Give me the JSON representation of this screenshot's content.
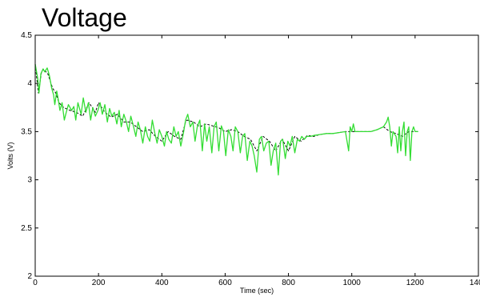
{
  "chart_data": {
    "type": "line",
    "title": "Voltage",
    "xlabel": "Time (sec)",
    "ylabel": "Volts (V)",
    "xlim": [
      0,
      1400
    ],
    "ylim": [
      2,
      4.5
    ],
    "x_ticks": [
      0,
      200,
      400,
      600,
      800,
      1000,
      1200,
      1400
    ],
    "y_ticks": [
      2,
      2.5,
      3,
      3.5,
      4,
      4.5
    ],
    "x_tick_labels": [
      "0",
      "200",
      "400",
      "600",
      "800",
      "1000",
      "1200",
      "1400"
    ],
    "y_tick_labels": [
      "2",
      "2.5",
      "3",
      "3.5",
      "4",
      "4.5"
    ],
    "grid": false,
    "series": [
      {
        "color": "#000000",
        "style": "dashed",
        "x": [
          0,
          10,
          20,
          25,
          40,
          55,
          65,
          75,
          90,
          110,
          130,
          150,
          170,
          190,
          200,
          220,
          240,
          260,
          280,
          300,
          320,
          340,
          360,
          380,
          400,
          420,
          440,
          460,
          475,
          480,
          500,
          520,
          540,
          560,
          580,
          600,
          620,
          640,
          660,
          680,
          700,
          720,
          740,
          760,
          780,
          800,
          820,
          840,
          860,
          880,
          900,
          920,
          940,
          960,
          980,
          1000,
          1020,
          1040,
          1060,
          1080,
          1100,
          1120,
          1140,
          1160,
          1180,
          1200,
          1210
        ],
        "values": [
          4.2,
          3.9,
          4.12,
          4.15,
          4.1,
          3.95,
          3.9,
          3.8,
          3.75,
          3.72,
          3.7,
          3.66,
          3.8,
          3.7,
          3.8,
          3.7,
          3.65,
          3.68,
          3.6,
          3.6,
          3.55,
          3.5,
          3.52,
          3.45,
          3.4,
          3.5,
          3.45,
          3.42,
          3.6,
          3.62,
          3.6,
          3.55,
          3.58,
          3.56,
          3.54,
          3.5,
          3.52,
          3.5,
          3.45,
          3.42,
          3.3,
          3.45,
          3.4,
          3.3,
          3.42,
          3.3,
          3.45,
          3.4,
          3.46,
          3.45,
          3.47,
          3.48,
          3.48,
          3.49,
          3.5,
          3.5,
          3.5,
          3.5,
          3.5,
          3.52,
          3.55,
          3.5,
          3.48,
          3.45,
          3.5,
          3.5,
          3.5
        ]
      },
      {
        "color": "#33dd33",
        "style": "solid",
        "x": [
          0,
          8,
          12,
          18,
          25,
          30,
          38,
          45,
          52,
          58,
          62,
          68,
          72,
          78,
          85,
          92,
          98,
          105,
          115,
          122,
          128,
          135,
          145,
          152,
          160,
          168,
          175,
          182,
          190,
          198,
          205,
          212,
          220,
          228,
          235,
          242,
          250,
          258,
          265,
          272,
          280,
          288,
          295,
          302,
          310,
          318,
          325,
          332,
          340,
          348,
          355,
          362,
          370,
          378,
          385,
          392,
          400,
          408,
          415,
          422,
          430,
          438,
          445,
          452,
          460,
          468,
          475,
          482,
          490,
          498,
          505,
          512,
          520,
          528,
          535,
          542,
          550,
          558,
          565,
          572,
          580,
          588,
          595,
          602,
          610,
          618,
          625,
          632,
          640,
          648,
          655,
          662,
          670,
          678,
          685,
          692,
          700,
          708,
          715,
          722,
          730,
          738,
          745,
          752,
          760,
          768,
          775,
          782,
          790,
          798,
          805,
          812,
          820,
          828,
          835,
          842,
          850,
          858,
          870,
          880,
          900,
          920,
          940,
          960,
          980,
          990,
          995,
          1000,
          1005,
          1010,
          1020,
          1040,
          1060,
          1080,
          1100,
          1110,
          1115,
          1120,
          1125,
          1130,
          1140,
          1145,
          1150,
          1155,
          1160,
          1165,
          1170,
          1175,
          1180,
          1185,
          1190,
          1195,
          1200,
          1205,
          1210
        ],
        "values": [
          4.2,
          4.05,
          3.9,
          4.1,
          4.15,
          4.12,
          4.16,
          4.08,
          3.95,
          3.88,
          3.78,
          3.92,
          3.85,
          3.72,
          3.8,
          3.62,
          3.7,
          3.78,
          3.72,
          3.76,
          3.62,
          3.8,
          3.68,
          3.85,
          3.7,
          3.8,
          3.62,
          3.75,
          3.66,
          3.72,
          3.8,
          3.68,
          3.78,
          3.6,
          3.74,
          3.66,
          3.7,
          3.58,
          3.72,
          3.55,
          3.68,
          3.6,
          3.5,
          3.66,
          3.56,
          3.45,
          3.6,
          3.52,
          3.38,
          3.55,
          3.45,
          3.4,
          3.62,
          3.48,
          3.38,
          3.52,
          3.45,
          3.35,
          3.5,
          3.42,
          3.38,
          3.55,
          3.45,
          3.5,
          3.35,
          3.48,
          3.62,
          3.68,
          3.55,
          3.6,
          3.4,
          3.55,
          3.62,
          3.3,
          3.58,
          3.4,
          3.55,
          3.28,
          3.55,
          3.6,
          3.3,
          3.56,
          3.5,
          3.25,
          3.52,
          3.45,
          3.3,
          3.55,
          3.5,
          3.28,
          3.45,
          3.48,
          3.2,
          3.4,
          3.35,
          3.25,
          3.08,
          3.42,
          3.45,
          3.3,
          3.38,
          3.4,
          3.15,
          3.3,
          3.38,
          3.05,
          3.4,
          3.42,
          3.22,
          3.4,
          3.35,
          3.45,
          3.28,
          3.42,
          3.4,
          3.45,
          3.42,
          3.45,
          3.45,
          3.46,
          3.47,
          3.48,
          3.48,
          3.49,
          3.5,
          3.3,
          3.55,
          3.5,
          3.58,
          3.5,
          3.5,
          3.5,
          3.5,
          3.52,
          3.55,
          3.6,
          3.65,
          3.55,
          3.35,
          3.5,
          3.45,
          3.28,
          3.55,
          3.3,
          3.5,
          3.6,
          3.25,
          3.5,
          3.55,
          3.2,
          3.5,
          3.55,
          3.5,
          3.5,
          3.5
        ]
      }
    ]
  }
}
